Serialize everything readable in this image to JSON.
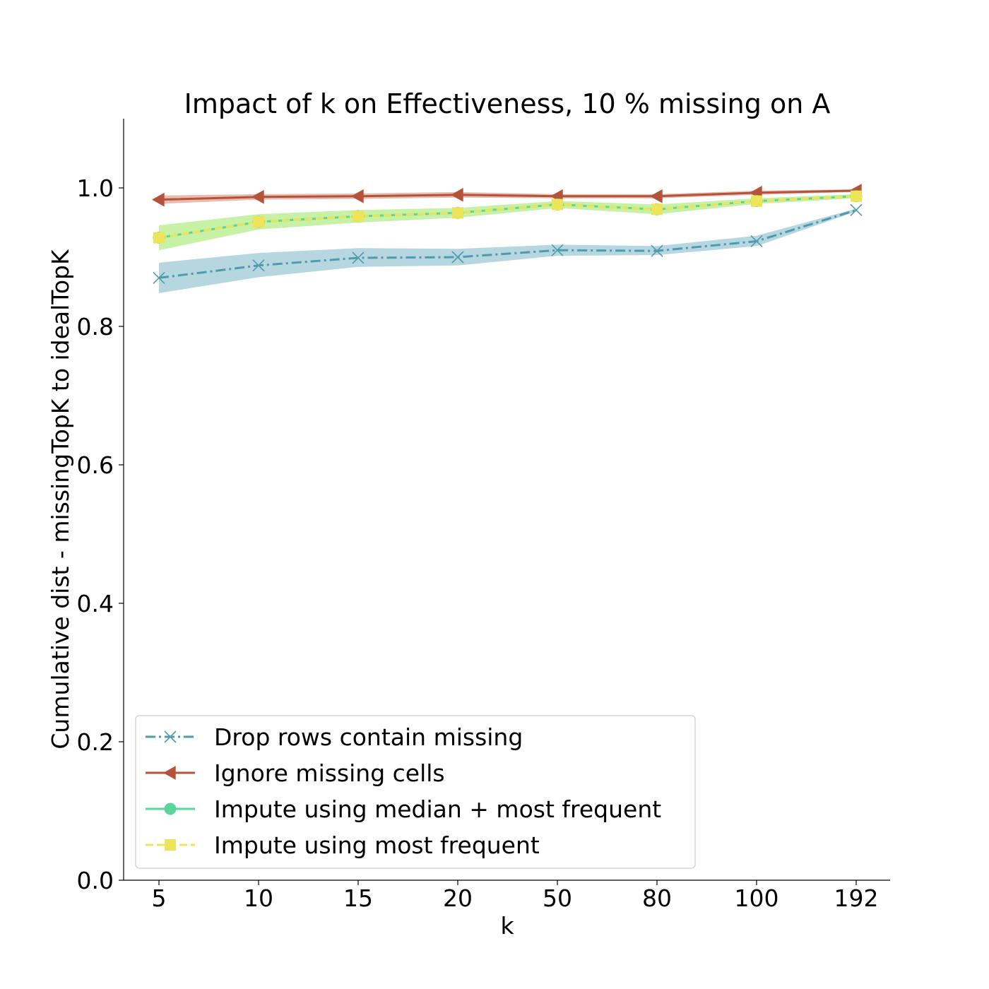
{
  "chart_data": {
    "type": "line",
    "title": "Impact of k on Effectiveness, 10 % missing on A",
    "xlabel": "k",
    "ylabel": "Cumulative dist - missingTopK to idealTopK",
    "categories": [
      "5",
      "10",
      "15",
      "20",
      "50",
      "80",
      "100",
      "192"
    ],
    "ylim": [
      0.0,
      1.1
    ],
    "yticks": [
      "0.0",
      "0.2",
      "0.4",
      "0.6",
      "0.8",
      "1.0"
    ],
    "ytick_values": [
      0.0,
      0.2,
      0.4,
      0.6,
      0.8,
      1.0
    ],
    "grid": false,
    "legend_position": "lower-left",
    "series": [
      {
        "name": "Drop rows contain missing",
        "color": "#4e9bad",
        "band_color": "#8fc0cf",
        "linestyle": "dashdot",
        "marker": "x",
        "values": [
          0.87,
          0.888,
          0.899,
          0.9,
          0.91,
          0.909,
          0.923,
          0.968
        ],
        "lower": [
          0.848,
          0.871,
          0.886,
          0.888,
          0.902,
          0.903,
          0.916,
          0.966
        ],
        "upper": [
          0.892,
          0.906,
          0.913,
          0.912,
          0.918,
          0.916,
          0.931,
          0.97
        ]
      },
      {
        "name": "Ignore missing cells",
        "color": "#b5533a",
        "band_color": "#d89a86",
        "linestyle": "solid",
        "marker": "triangle-left",
        "values": [
          0.983,
          0.987,
          0.988,
          0.99,
          0.988,
          0.988,
          0.993,
          0.996
        ],
        "lower": [
          0.977,
          0.983,
          0.984,
          0.986,
          0.985,
          0.985,
          0.99,
          0.994
        ],
        "upper": [
          0.989,
          0.991,
          0.992,
          0.994,
          0.991,
          0.991,
          0.996,
          0.998
        ]
      },
      {
        "name": "Impute using median + most frequent",
        "color": "#5ad69a",
        "band_color": "#a9e8c6",
        "linestyle": "solid",
        "marker": "circle",
        "values": [
          0.928,
          0.951,
          0.959,
          0.964,
          0.976,
          0.969,
          0.981,
          0.988
        ],
        "lower": [
          0.91,
          0.94,
          0.95,
          0.957,
          0.971,
          0.962,
          0.977,
          0.985
        ],
        "upper": [
          0.946,
          0.962,
          0.968,
          0.971,
          0.981,
          0.976,
          0.985,
          0.991
        ]
      },
      {
        "name": "Impute using most frequent",
        "color": "#ede459",
        "band_color": "#c8f28a",
        "linestyle": "dashed",
        "marker": "square",
        "values": [
          0.928,
          0.951,
          0.959,
          0.964,
          0.976,
          0.969,
          0.981,
          0.988
        ],
        "lower": [
          0.91,
          0.94,
          0.95,
          0.957,
          0.971,
          0.962,
          0.977,
          0.985
        ],
        "upper": [
          0.946,
          0.962,
          0.968,
          0.971,
          0.981,
          0.976,
          0.985,
          0.991
        ]
      }
    ]
  }
}
